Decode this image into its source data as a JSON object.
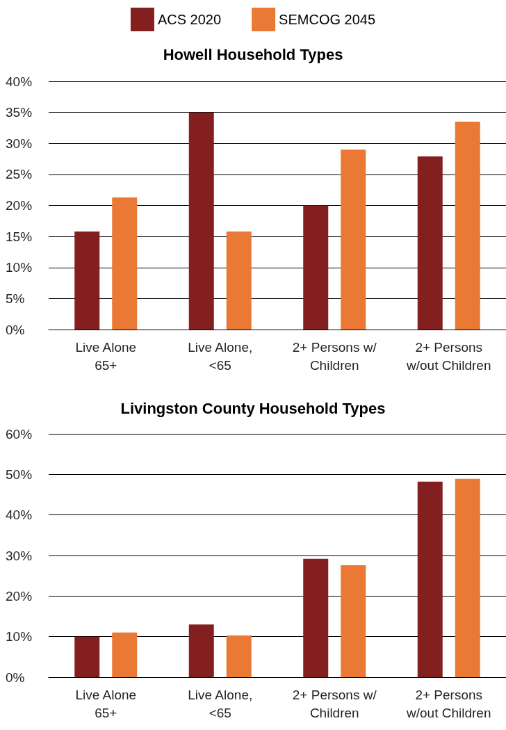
{
  "chart_data": [
    {
      "type": "bar",
      "title": "Howell Household Types",
      "categories": [
        "Live Alone\n65+",
        "Live Alone,\n<65",
        "2+ Persons w/\nChildren",
        "2+ Persons\nw/out Children"
      ],
      "series": [
        {
          "name": "ACS 2020",
          "color": "#841f1f",
          "values": [
            15.8,
            35,
            20,
            27.9
          ]
        },
        {
          "name": "SEMCOG 2045",
          "color": "#ea7935",
          "values": [
            21.3,
            15.8,
            29,
            33.5
          ]
        }
      ],
      "ylim": [
        0,
        40
      ],
      "yticks": [
        {
          "value": 0,
          "label": "0%"
        },
        {
          "value": 5,
          "label": "5%"
        },
        {
          "value": 10,
          "label": "10%"
        },
        {
          "value": 15,
          "label": "15%"
        },
        {
          "value": 20,
          "label": "20%"
        },
        {
          "value": 25,
          "label": "25%"
        },
        {
          "value": 30,
          "label": "30%"
        },
        {
          "value": 35,
          "label": "35%"
        },
        {
          "value": 40,
          "label": "40%"
        }
      ],
      "grid": "y",
      "legend": "top"
    },
    {
      "type": "bar",
      "title": "Livingston County Household Types",
      "categories": [
        "Live Alone\n65+",
        "Live Alone,\n<65",
        "2+ Persons w/\nChildren",
        "2+ Persons\nw/out Children"
      ],
      "series": [
        {
          "color": "#841f1f",
          "values": [
            10,
            13,
            29.2,
            48.2
          ]
        },
        {
          "color": "#ea7935",
          "values": [
            11,
            10.3,
            27.6,
            48.9
          ]
        }
      ],
      "ylim": [
        0,
        60
      ],
      "yticks": [
        {
          "value": 0,
          "label": "0%"
        },
        {
          "value": 10,
          "label": "10%"
        },
        {
          "value": 20,
          "label": "20%"
        },
        {
          "value": 30,
          "label": "30%"
        },
        {
          "value": 40,
          "label": "40%"
        },
        {
          "value": 50,
          "label": "50%"
        },
        {
          "value": 60,
          "label": "60%"
        }
      ],
      "grid": "y"
    }
  ]
}
